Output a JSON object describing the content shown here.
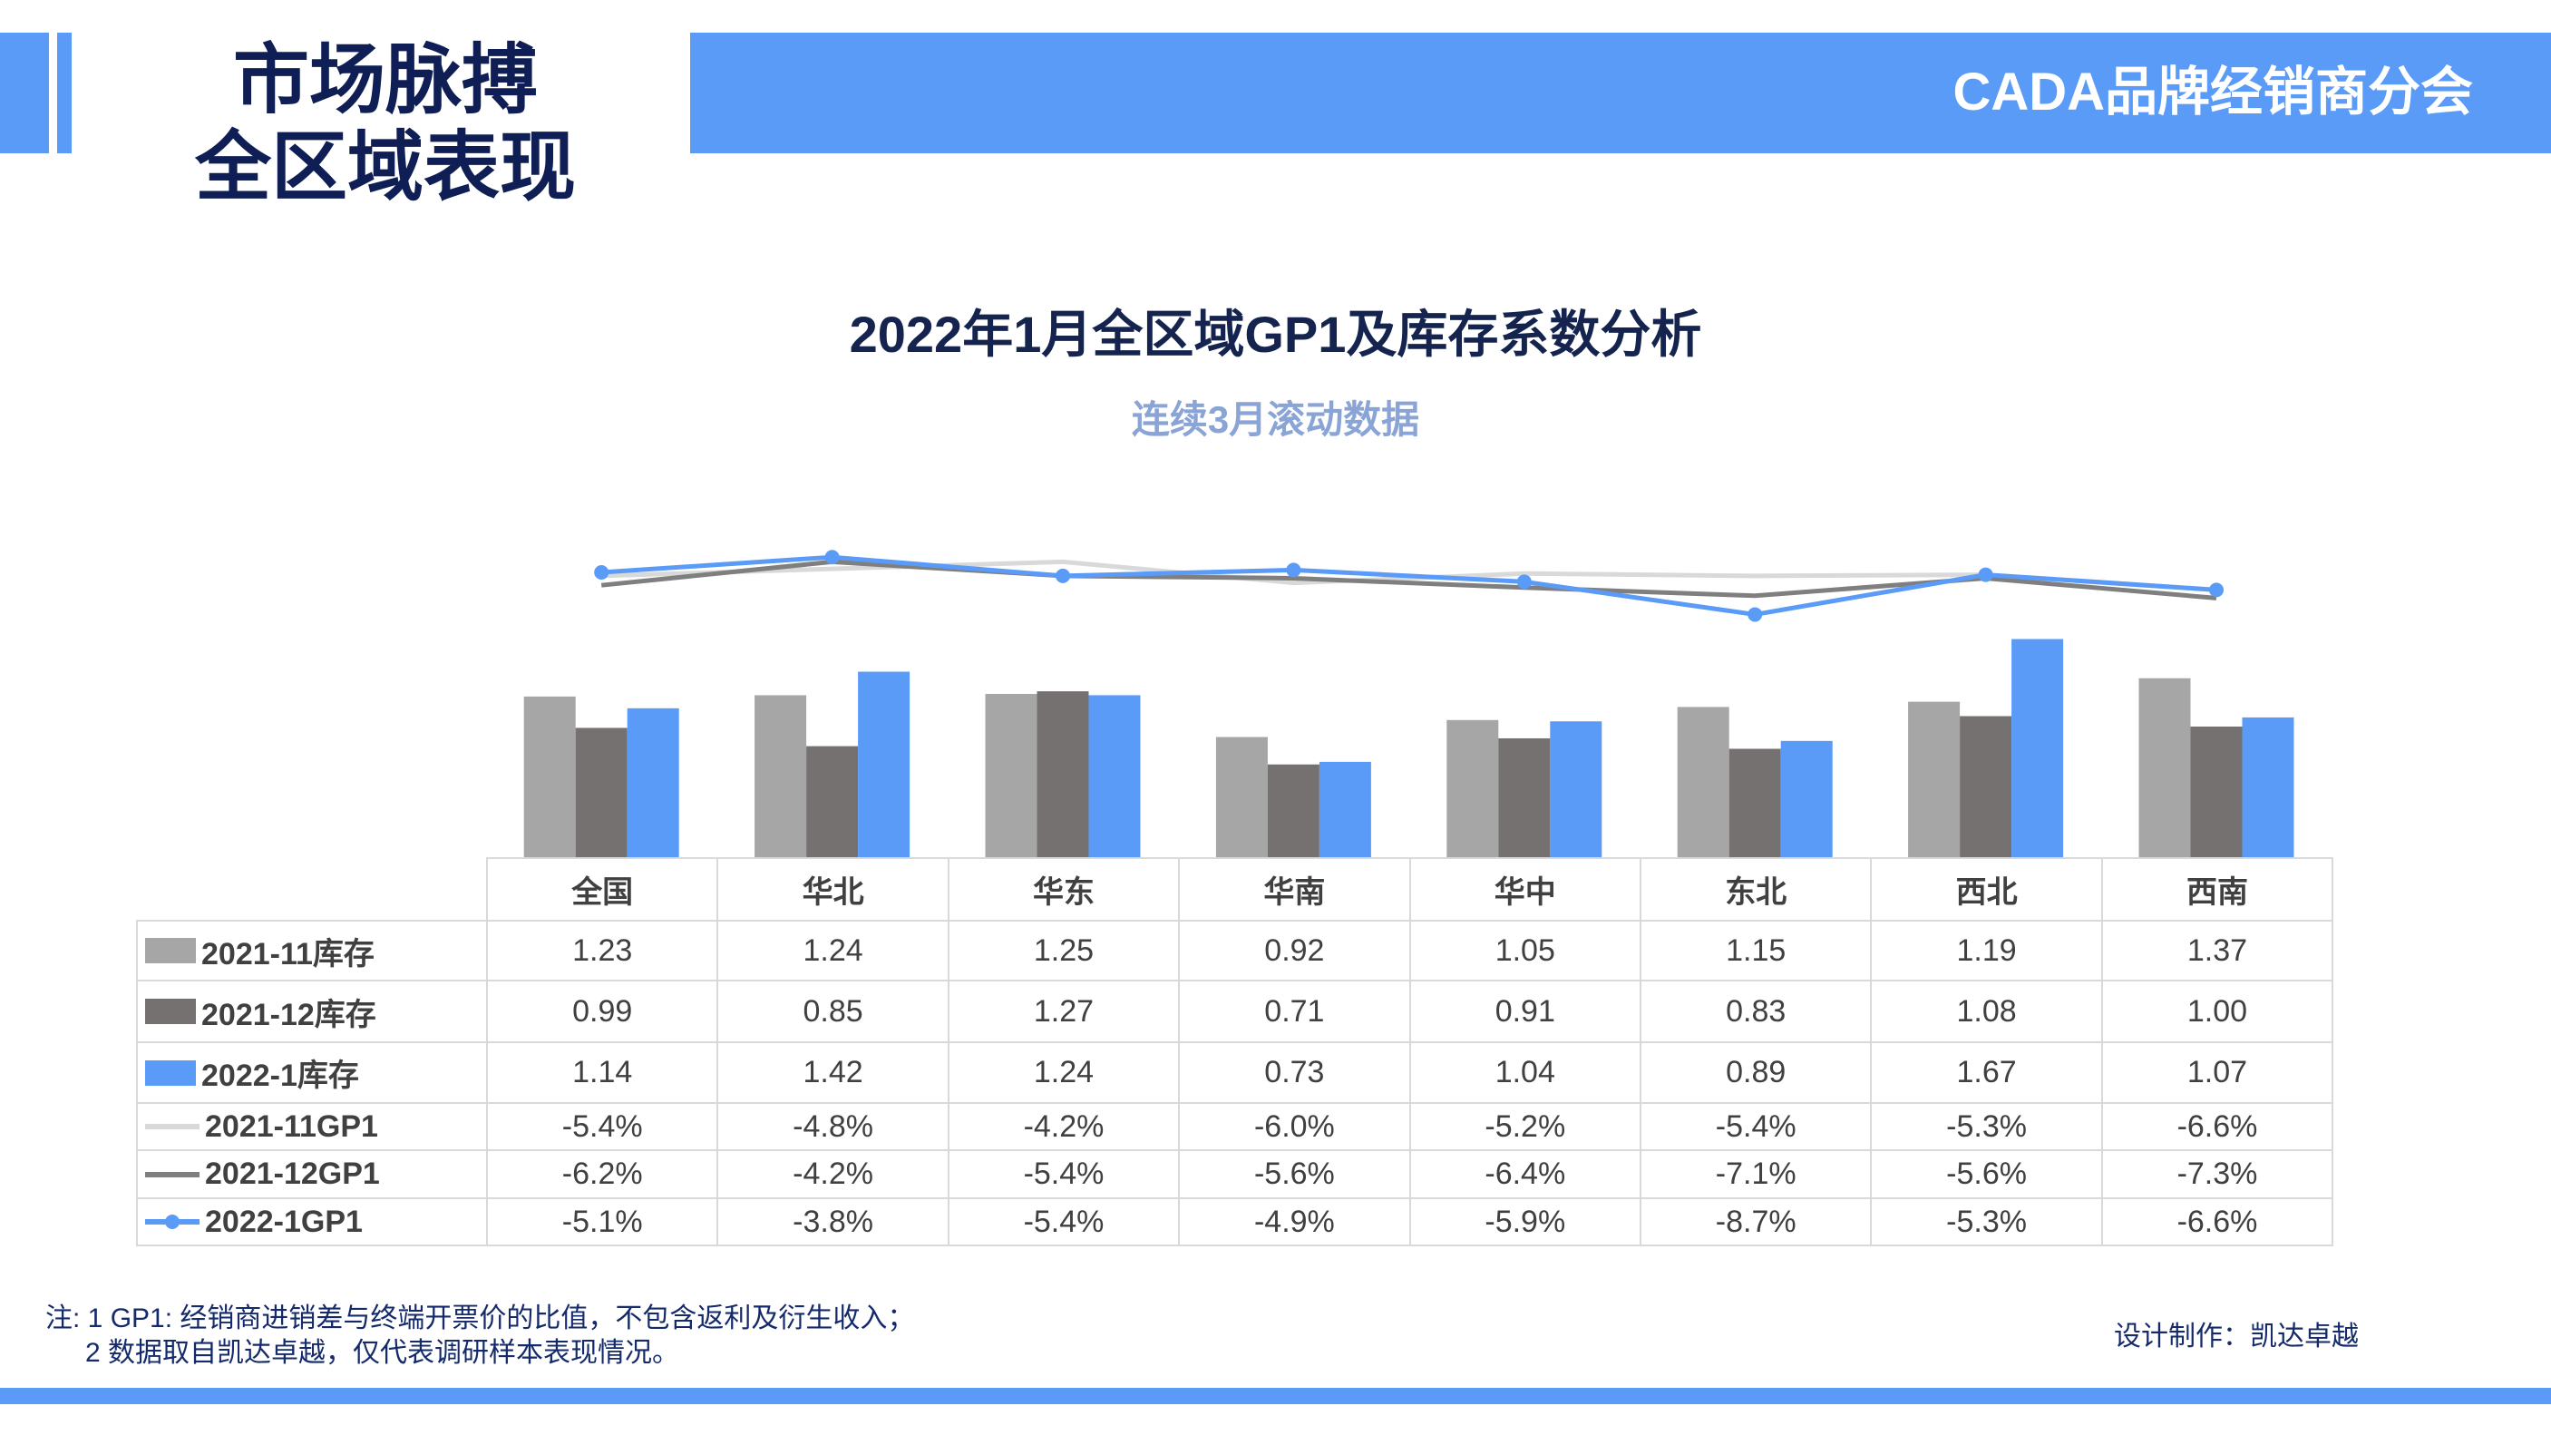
{
  "header": {
    "title_line1": "市场脉搏",
    "title_line2": "全区域表现",
    "org": "CADA品牌经销商分会"
  },
  "colors": {
    "accent": "#5b9bf8",
    "navy": "#0f1f55",
    "inv_2021_11": "#a6a6a6",
    "inv_2021_12": "#767171",
    "inv_2022_1": "#5b9bf8",
    "gp1_2021_11": "#d9d9d9",
    "gp1_2021_12": "#7f7f7f",
    "gp1_2022_1": "#5b9bf8"
  },
  "chart_data": {
    "type": "bar+line",
    "title": "2022年1月全区域GP1及库存系数分析",
    "subtitle": "连续3月滚动数据",
    "categories": [
      "全国",
      "华北",
      "华东",
      "华南",
      "华中",
      "东北",
      "西北",
      "西南"
    ],
    "bar_series": [
      {
        "name": "2021-11库存",
        "values": [
          1.23,
          1.24,
          1.25,
          0.92,
          1.05,
          1.15,
          1.19,
          1.37
        ],
        "labels": [
          "1.23",
          "1.24",
          "1.25",
          "0.92",
          "1.05",
          "1.15",
          "1.19",
          "1.37"
        ]
      },
      {
        "name": "2021-12库存",
        "values": [
          0.99,
          0.85,
          1.27,
          0.71,
          0.91,
          0.83,
          1.08,
          1.0
        ],
        "labels": [
          "0.99",
          "0.85",
          "1.27",
          "0.71",
          "0.91",
          "0.83",
          "1.08",
          "1.00"
        ]
      },
      {
        "name": "2022-1库存",
        "values": [
          1.14,
          1.42,
          1.24,
          0.73,
          1.04,
          0.89,
          1.67,
          1.07
        ],
        "labels": [
          "1.14",
          "1.42",
          "1.24",
          "0.73",
          "1.04",
          "0.89",
          "1.67",
          "1.07"
        ]
      }
    ],
    "line_series": [
      {
        "name": "2021-11GP1",
        "values": [
          -5.4,
          -4.8,
          -4.2,
          -6.0,
          -5.2,
          -5.4,
          -5.3,
          -6.6
        ],
        "labels": [
          "-5.4%",
          "-4.8%",
          "-4.2%",
          "-6.0%",
          "-5.2%",
          "-5.4%",
          "-5.3%",
          "-6.6%"
        ]
      },
      {
        "name": "2021-12GP1",
        "values": [
          -6.2,
          -4.2,
          -5.4,
          -5.6,
          -6.4,
          -7.1,
          -5.6,
          -7.3
        ],
        "labels": [
          "-6.2%",
          "-4.2%",
          "-5.4%",
          "-5.6%",
          "-6.4%",
          "-7.1%",
          "-5.6%",
          "-7.3%"
        ]
      },
      {
        "name": "2022-1GP1",
        "values": [
          -5.1,
          -3.8,
          -5.4,
          -4.9,
          -5.9,
          -8.7,
          -5.3,
          -6.6
        ],
        "labels": [
          "-5.1%",
          "-3.8%",
          "-5.4%",
          "-4.9%",
          "-5.9%",
          "-8.7%",
          "-5.3%",
          "-6.6%"
        ],
        "markers": true
      }
    ],
    "legend": "data-table-left",
    "grid": false
  },
  "footer": {
    "note_line1": "注: 1  GP1: 经销商进销差与终端开票价的比值，不包含返利及衍生收入；",
    "note_line2": "2 数据取自凯达卓越，仅代表调研样本表现情况。",
    "credit": "设计制作：凯达卓越"
  }
}
